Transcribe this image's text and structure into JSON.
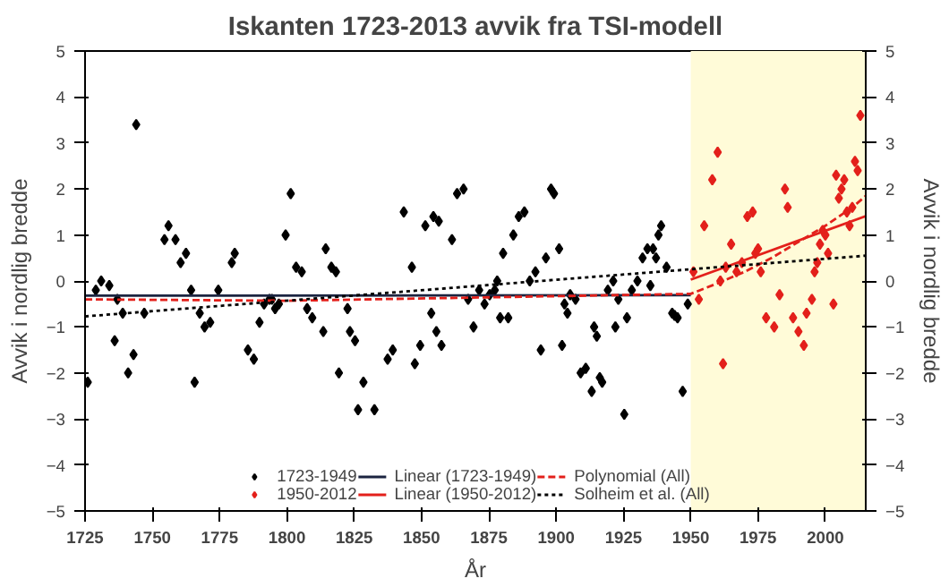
{
  "chart_data": {
    "type": "scatter",
    "title": "Iskanten 1723-2013 avvik fra TSI-modell",
    "xlabel": "År",
    "ylabel": "Avvik i nordlig bredde",
    "y2label": "Avvik i nordlig bredde",
    "xlim": [
      1725,
      2015
    ],
    "xticks": [
      1725,
      1750,
      1775,
      1800,
      1825,
      1850,
      1875,
      1900,
      1925,
      1950,
      1975,
      2000
    ],
    "ylim": [
      -5,
      5
    ],
    "yticks": [
      -5,
      -4,
      -3,
      -2,
      -1,
      0,
      1,
      2,
      3,
      4,
      5
    ],
    "y2lim": [
      -5,
      5
    ],
    "y2ticks": [
      -5,
      -4,
      -3,
      -2,
      -1,
      0,
      1,
      2,
      3,
      4,
      5
    ],
    "grid": false,
    "legend": "bottom",
    "bands": [
      {
        "axis": "x",
        "from": 1950,
        "to": 2015,
        "color": "#fffbd8"
      }
    ],
    "series": [
      {
        "name": "1723-1949",
        "marker": "diamond",
        "color": "#000000",
        "x": [
          1726,
          1729,
          1731,
          1734,
          1736,
          1737,
          1739,
          1741,
          1743,
          1744,
          1747,
          1754.5,
          1756,
          1758.6,
          1760.5,
          1762.5,
          1764.4,
          1765.7,
          1767.6,
          1769.4,
          1771.5,
          1774.5,
          1779.5,
          1780.6,
          1785.5,
          1787.7,
          1789.8,
          1791.5,
          1793.5,
          1794.4,
          1795.6,
          1797,
          1799.5,
          1801.4,
          1803.4,
          1805.5,
          1807.5,
          1809.4,
          1813.5,
          1814.4,
          1816.5,
          1818.2,
          1819.3,
          1822.5,
          1823.4,
          1825.3,
          1826.4,
          1828.4,
          1832.5,
          1837.4,
          1839.3,
          1843.4,
          1846.4,
          1847.5,
          1849.5,
          1851.4,
          1853.6,
          1854.4,
          1855.5,
          1856.4,
          1857.4,
          1861.3,
          1863.2,
          1865.6,
          1867.3,
          1869.3,
          1871.4,
          1873.4,
          1875.3,
          1877.2,
          1878.1,
          1879.2,
          1880.3,
          1882.2,
          1884.1,
          1886.1,
          1888.2,
          1890.2,
          1892.3,
          1894.3,
          1896.2,
          1898.1,
          1899.2,
          1901.1,
          1902.2,
          1903.1,
          1904.2,
          1905.2,
          1907.2,
          1909.1,
          1911,
          1913.2,
          1914.1,
          1915.1,
          1916.2,
          1917.1,
          1919.2,
          1921.2,
          1922,
          1923.1,
          1925.3,
          1926.3,
          1928.1,
          1930.2,
          1932.1,
          1933.9,
          1935,
          1936,
          1937.1,
          1938,
          1939,
          1941,
          1943.1,
          1944,
          1945.1,
          1947,
          1948.9
        ],
        "values": [
          -2.2,
          -0.2,
          0.0,
          -0.1,
          -1.3,
          -0.4,
          -0.7,
          -2.0,
          -1.6,
          3.4,
          -0.7,
          0.9,
          1.2,
          0.9,
          0.4,
          0.6,
          -0.2,
          -2.2,
          -0.7,
          -1.0,
          -0.9,
          -0.2,
          0.4,
          0.6,
          -1.5,
          -1.7,
          -0.9,
          -0.5,
          -0.4,
          -0.4,
          -0.6,
          -0.5,
          1.0,
          1.9,
          0.3,
          0.2,
          -0.6,
          -0.8,
          -1.1,
          0.7,
          0.3,
          0.2,
          -2.0,
          -0.6,
          -1.1,
          -1.3,
          -2.8,
          -2.2,
          -2.8,
          -1.7,
          -1.5,
          1.5,
          0.3,
          -1.8,
          -1.4,
          1.2,
          -0.7,
          1.4,
          -1.1,
          1.3,
          -1.4,
          0.9,
          1.9,
          2.0,
          -0.4,
          -1.0,
          -0.2,
          -0.5,
          -0.3,
          -0.2,
          0.0,
          -0.8,
          0.6,
          -0.8,
          1.0,
          1.4,
          1.5,
          0.0,
          0.2,
          -1.5,
          0.5,
          2.0,
          1.9,
          0.7,
          -1.4,
          -0.5,
          -0.7,
          -0.3,
          -0.4,
          -2.0,
          -1.9,
          -2.4,
          -1.0,
          -1.2,
          -2.1,
          -2.2,
          -0.2,
          0.0,
          -1.0,
          -0.4,
          -2.9,
          -0.8,
          -0.2,
          0.0,
          0.5,
          0.7,
          -0.1,
          0.7,
          0.5,
          1.0,
          1.2,
          0.3,
          -0.7,
          -0.75,
          -0.8,
          -2.4,
          -0.5
        ]
      },
      {
        "name": "1950-2012",
        "marker": "diamond",
        "color": "#e3201b",
        "x": [
          1951,
          1953,
          1955,
          1958,
          1960,
          1961,
          1962,
          1963,
          1965,
          1967,
          1969,
          1971,
          1973,
          1974,
          1975,
          1976,
          1978,
          1981,
          1983,
          1985,
          1986,
          1988,
          1990,
          1992,
          1993,
          1995,
          1996,
          1997,
          1998,
          1999,
          2000,
          2001,
          2003,
          2004,
          2005,
          2006,
          2007,
          2008,
          2009,
          2010,
          2011,
          2012,
          2013
        ],
        "values": [
          0.2,
          -0.4,
          1.2,
          2.2,
          2.8,
          0.0,
          -1.8,
          0.3,
          0.8,
          0.2,
          0.4,
          1.4,
          1.5,
          0.6,
          0.7,
          0.2,
          -0.8,
          -1.0,
          -0.3,
          2.0,
          1.6,
          -0.8,
          -1.1,
          -1.4,
          -0.7,
          -0.4,
          0.2,
          0.4,
          0.8,
          1.1,
          1.0,
          0.6,
          -0.5,
          2.3,
          1.8,
          2.0,
          2.2,
          1.5,
          1.2,
          1.6,
          2.6,
          2.4,
          3.6
        ]
      },
      {
        "name": "Linear (1723-1949)",
        "type": "line",
        "color": "#1b2440",
        "line_style": "solid",
        "x": [
          1725,
          1950
        ],
        "values": [
          -0.32,
          -0.31
        ]
      },
      {
        "name": "Linear (1950-2012)",
        "type": "line",
        "color": "#e3201b",
        "line_style": "solid",
        "x": [
          1950,
          2015
        ],
        "values": [
          0.03,
          1.41
        ]
      },
      {
        "name": "Polynomial (All)",
        "type": "line",
        "color": "#e3201b",
        "line_style": "dashed",
        "x": [
          1725,
          1800,
          1900,
          1950,
          1960,
          1970,
          1980,
          1990,
          2000,
          2010,
          2015
        ],
        "values": [
          -0.4,
          -0.43,
          -0.33,
          -0.28,
          -0.05,
          0.2,
          0.5,
          0.85,
          1.2,
          1.6,
          1.85
        ]
      },
      {
        "name": "Solheim et al. (All)",
        "type": "line",
        "color": "#000000",
        "line_style": "dotted",
        "x": [
          1725,
          2015
        ],
        "values": [
          -0.77,
          0.55
        ]
      }
    ]
  }
}
